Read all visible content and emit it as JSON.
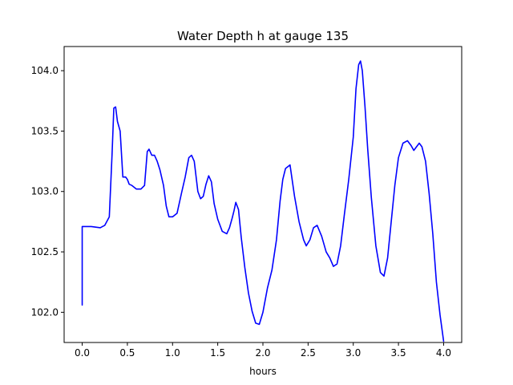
{
  "chart_data": {
    "type": "line",
    "title": "Water Depth h at gauge 135",
    "xlabel": "hours",
    "ylabel": "",
    "xlim": [
      -0.2,
      4.2
    ],
    "ylim": [
      101.75,
      104.2
    ],
    "x_ticks": [
      0.0,
      0.5,
      1.0,
      1.5,
      2.0,
      2.5,
      3.0,
      3.5,
      4.0
    ],
    "x_tick_labels": [
      "0.0",
      "0.5",
      "1.0",
      "1.5",
      "2.0",
      "2.5",
      "3.0",
      "3.5",
      "4.0"
    ],
    "y_ticks": [
      102.0,
      102.5,
      103.0,
      103.5,
      104.0
    ],
    "y_tick_labels": [
      "102.0",
      "102.5",
      "103.0",
      "103.5",
      "104.0"
    ],
    "grid": false,
    "legend": "none",
    "series": [
      {
        "color": "#0000ff",
        "x": [
          0.0,
          0.0,
          0.1,
          0.2,
          0.25,
          0.3,
          0.33,
          0.35,
          0.37,
          0.39,
          0.42,
          0.45,
          0.48,
          0.5,
          0.52,
          0.55,
          0.6,
          0.65,
          0.69,
          0.72,
          0.74,
          0.77,
          0.8,
          0.83,
          0.86,
          0.9,
          0.93,
          0.96,
          1.0,
          1.05,
          1.1,
          1.14,
          1.18,
          1.21,
          1.24,
          1.28,
          1.31,
          1.34,
          1.37,
          1.4,
          1.43,
          1.46,
          1.5,
          1.55,
          1.6,
          1.63,
          1.66,
          1.68,
          1.7,
          1.73,
          1.76,
          1.8,
          1.84,
          1.88,
          1.92,
          1.96,
          2.0,
          2.05,
          2.1,
          2.15,
          2.19,
          2.22,
          2.25,
          2.3,
          2.35,
          2.4,
          2.45,
          2.48,
          2.52,
          2.56,
          2.6,
          2.65,
          2.7,
          2.74,
          2.78,
          2.82,
          2.86,
          2.9,
          2.95,
          3.0,
          3.03,
          3.06,
          3.08,
          3.1,
          3.13,
          3.16,
          3.2,
          3.25,
          3.3,
          3.34,
          3.38,
          3.42,
          3.46,
          3.5,
          3.55,
          3.6,
          3.64,
          3.67,
          3.7,
          3.73,
          3.76,
          3.8,
          3.84,
          3.88,
          3.92,
          3.96,
          4.0
        ],
        "y": [
          102.06,
          102.71,
          102.71,
          102.7,
          102.72,
          102.79,
          103.3,
          103.69,
          103.7,
          103.58,
          103.5,
          103.12,
          103.12,
          103.1,
          103.06,
          103.05,
          103.02,
          103.02,
          103.05,
          103.33,
          103.35,
          103.3,
          103.3,
          103.25,
          103.18,
          103.05,
          102.88,
          102.79,
          102.79,
          102.82,
          102.99,
          103.12,
          103.28,
          103.3,
          103.25,
          103.0,
          102.94,
          102.96,
          103.06,
          103.13,
          103.08,
          102.9,
          102.77,
          102.67,
          102.65,
          102.7,
          102.78,
          102.84,
          102.91,
          102.85,
          102.62,
          102.37,
          102.16,
          102.01,
          101.91,
          101.9,
          102.0,
          102.2,
          102.35,
          102.6,
          102.92,
          103.1,
          103.19,
          103.22,
          102.96,
          102.75,
          102.6,
          102.55,
          102.6,
          102.7,
          102.72,
          102.63,
          102.5,
          102.45,
          102.38,
          102.4,
          102.55,
          102.8,
          103.1,
          103.45,
          103.85,
          104.05,
          104.08,
          104.0,
          103.7,
          103.35,
          102.95,
          102.55,
          102.33,
          102.3,
          102.45,
          102.75,
          103.05,
          103.28,
          103.4,
          103.42,
          103.38,
          103.34,
          103.37,
          103.4,
          103.37,
          103.25,
          102.98,
          102.65,
          102.25,
          101.98,
          101.76
        ]
      }
    ]
  }
}
